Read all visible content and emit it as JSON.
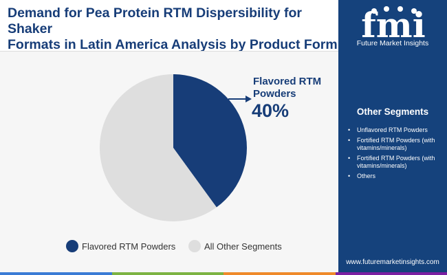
{
  "header": {
    "title_line1": "Demand for Pea Protein RTM Dispersibility for Shaker",
    "title_line2": "Formats in Latin America Analysis by Product Form"
  },
  "brand": {
    "logo_text": "fmi",
    "name": "Future Market Insights",
    "website": "www.futuremarketinsights.com"
  },
  "sidebar": {
    "segments_title": "Other Segments",
    "segments": [
      "Unflavored RTM Powders",
      "Fortified RTM Powders (with vitamins/minerals)",
      "Fortified RTM Powders (with vitamins/minerals)",
      "Others"
    ]
  },
  "colors": {
    "primary": "#173d78",
    "other": "#dedede",
    "sidebar": "#15427c",
    "strip": [
      "#3a7bd5",
      "#7cb342",
      "#ef8a2a",
      "#7b1fa2"
    ]
  },
  "chart_data": {
    "type": "pie",
    "slices": [
      {
        "label": "Flavored RTM Powders",
        "value": 40,
        "color": "#173d78"
      },
      {
        "label": "All Other Segments",
        "value": 60,
        "color": "#dedede"
      }
    ],
    "annotation": {
      "label_line1": "Flavored RTM",
      "label_line2": "Powders",
      "value_text": "40%"
    },
    "legend": {
      "placement": "bottom",
      "items": [
        "Flavored RTM Powders",
        "All Other Segments"
      ]
    }
  }
}
